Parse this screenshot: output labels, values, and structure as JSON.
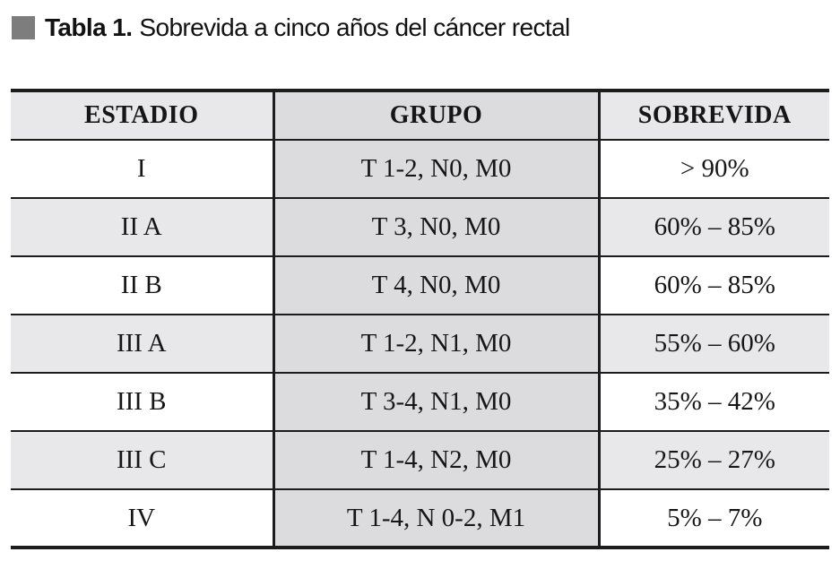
{
  "caption": {
    "label": "Tabla 1.",
    "text": "Sobrevida a cinco años del cáncer rectal"
  },
  "colors": {
    "caption_square": "#7d7d7d",
    "shade_light": "#e8e8ea",
    "shade_dark": "#dcdcde",
    "rule": "#1c1c1c",
    "text": "#161616"
  },
  "table": {
    "headers": [
      "ESTADIO",
      "GRUPO",
      "SOBREVIDA"
    ],
    "rows": [
      {
        "estadio": "I",
        "grupo": "T 1-2, N0, M0",
        "sobrevida": "> 90%"
      },
      {
        "estadio": "II A",
        "grupo": "T 3, N0, M0",
        "sobrevida": "60% – 85%"
      },
      {
        "estadio": "II B",
        "grupo": "T 4, N0, M0",
        "sobrevida": "60% – 85%"
      },
      {
        "estadio": "III A",
        "grupo": "T 1-2, N1, M0",
        "sobrevida": "55% – 60%"
      },
      {
        "estadio": "III B",
        "grupo": "T 3-4, N1, M0",
        "sobrevida": "35% – 42%"
      },
      {
        "estadio": "III C",
        "grupo": "T 1-4, N2, M0",
        "sobrevida": "25% – 27%"
      },
      {
        "estadio": "IV",
        "grupo": "T 1-4, N 0-2, M1",
        "sobrevida": "5% – 7%"
      }
    ]
  }
}
